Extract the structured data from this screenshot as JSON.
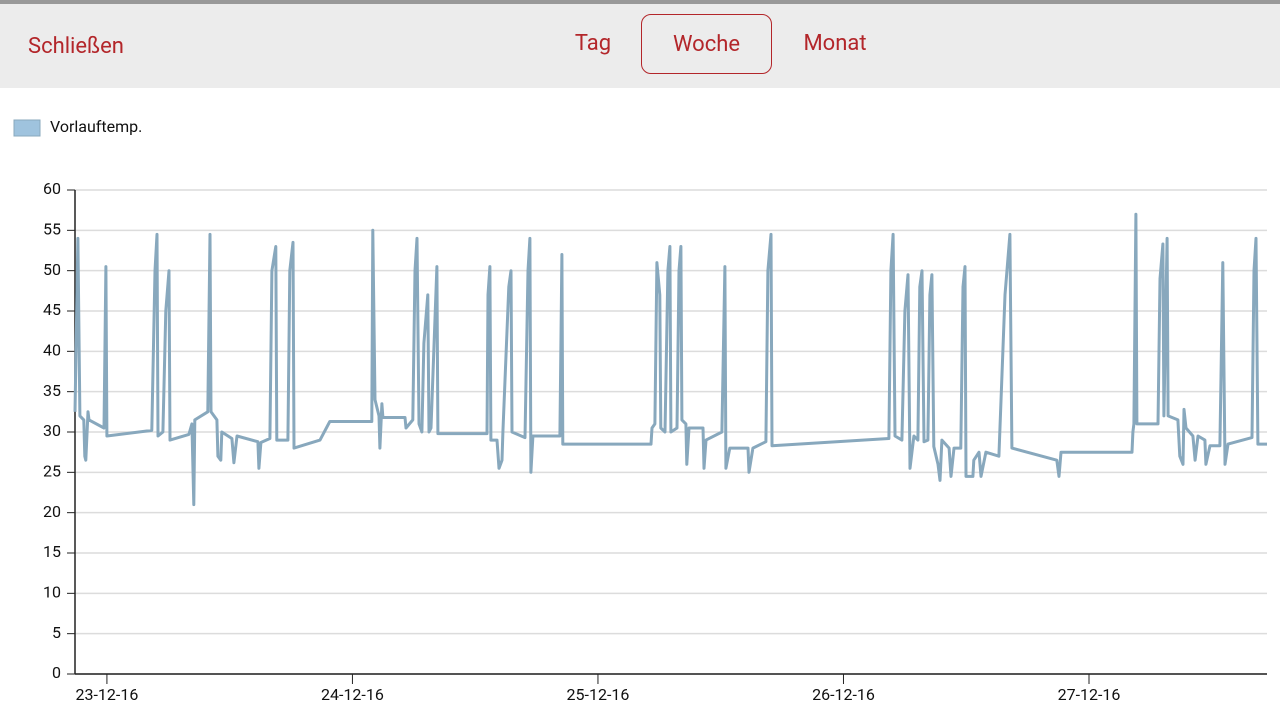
{
  "nav": {
    "close": "Schließen",
    "tabs": [
      "Tag",
      "Woche",
      "Monat"
    ],
    "active_tab": 1
  },
  "chart_data": {
    "type": "line",
    "x": [
      -0.13,
      -0.118,
      -0.11,
      -0.094,
      -0.09,
      -0.086,
      -0.077,
      -0.073,
      -0.012,
      -0.004,
      0,
      0.183,
      0.196,
      0.204,
      0.208,
      0.228,
      0.24,
      0.253,
      0.257,
      0.334,
      0.346,
      0.354,
      0.358,
      0.411,
      0.42,
      0.424,
      0.448,
      0.452,
      0.464,
      0.468,
      0.509,
      0.517,
      0.53,
      0.615,
      0.619,
      0.627,
      0.664,
      0.672,
      0.688,
      0.692,
      0.737,
      0.745,
      0.758,
      0.762,
      0.868,
      0.908,
      1.079,
      1.083,
      1.092,
      1.108,
      1.112,
      1.12,
      1.124,
      1.214,
      1.218,
      1.246,
      1.255,
      1.263,
      1.271,
      1.283,
      1.291,
      1.307,
      1.312,
      1.32,
      1.344,
      1.348,
      1.548,
      1.552,
      1.56,
      1.564,
      1.589,
      1.597,
      1.609,
      1.613,
      1.637,
      1.646,
      1.65,
      1.703,
      1.715,
      1.723,
      1.727,
      1.735,
      1.845,
      1.853,
      1.857,
      2.216,
      2.22,
      2.232,
      2.24,
      2.252,
      2.256,
      2.273,
      2.285,
      2.293,
      2.297,
      2.322,
      2.33,
      2.338,
      2.342,
      2.358,
      2.362,
      2.371,
      2.428,
      2.432,
      2.44,
      2.505,
      2.517,
      2.521,
      2.537,
      2.611,
      2.615,
      2.631,
      2.684,
      2.692,
      2.705,
      2.709,
      3.185,
      3.193,
      3.202,
      3.21,
      3.238,
      3.25,
      3.263,
      3.271,
      3.287,
      3.303,
      3.311,
      3.32,
      3.328,
      3.344,
      3.352,
      3.36,
      3.368,
      3.385,
      3.393,
      3.401,
      3.43,
      3.438,
      3.45,
      3.478,
      3.487,
      3.495,
      3.499,
      3.527,
      3.531,
      3.552,
      3.56,
      3.58,
      3.633,
      3.658,
      3.678,
      3.686,
      3.869,
      3.878,
      3.886,
      4.175,
      4.179,
      4.183,
      4.191,
      4.195,
      4.281,
      4.289,
      4.301,
      4.305,
      4.318,
      4.322,
      4.362,
      4.37,
      4.383,
      4.387,
      4.395,
      4.423,
      4.432,
      4.444,
      4.472,
      4.476,
      4.493,
      4.533,
      4.545,
      4.554,
      4.566,
      4.664,
      4.672,
      4.68,
      4.688,
      4.725
    ],
    "series": [
      {
        "name": "Vorlauftemp.",
        "color": "#88a8bd",
        "values": [
          32.5,
          54,
          32,
          31.5,
          27,
          26.5,
          32.5,
          31.5,
          30.5,
          50.5,
          29.5,
          30.2,
          50,
          54.5,
          29.5,
          30,
          45,
          50,
          29,
          29.7,
          31,
          21,
          31.5,
          32.5,
          54.5,
          32.5,
          31.5,
          27,
          26.5,
          30,
          29.2,
          26.2,
          29.5,
          28.8,
          25.5,
          28.7,
          29.2,
          50,
          53,
          29,
          29,
          50,
          53.5,
          28,
          29,
          31.3,
          31.3,
          55,
          34,
          32,
          28,
          33.5,
          31.8,
          31.8,
          30.5,
          31.5,
          50,
          54,
          31,
          30,
          41,
          47,
          30,
          30.5,
          50.5,
          29.8,
          29.8,
          47,
          50.5,
          29,
          29,
          25.5,
          26.5,
          30,
          48,
          50,
          30,
          29.3,
          50,
          54,
          25,
          29.5,
          29.5,
          52,
          28.5,
          28.5,
          30.5,
          31,
          51,
          47,
          30.5,
          30,
          50,
          53,
          30,
          30.5,
          50,
          53,
          31.5,
          31,
          26,
          30.5,
          30.5,
          25.5,
          29,
          30,
          50.5,
          25.5,
          28,
          28,
          25,
          28,
          28.8,
          50,
          54.5,
          28.3,
          29.2,
          50,
          54.5,
          29.5,
          29,
          45,
          49.5,
          25.5,
          29.5,
          29,
          48,
          50,
          28.8,
          29,
          47,
          49.5,
          28.2,
          26,
          24,
          29,
          28,
          24.5,
          28,
          28,
          48,
          50.5,
          24.5,
          24.5,
          26.5,
          27.5,
          24.5,
          27.5,
          27,
          47,
          54.5,
          28,
          26.5,
          24.5,
          27.5,
          27.5,
          30,
          31,
          57,
          31,
          31,
          49,
          53.3,
          32,
          54,
          32,
          31.5,
          27,
          26,
          32.8,
          30.5,
          29.5,
          26.5,
          29.5,
          29,
          26,
          28.3,
          28.3,
          51,
          26,
          28.5,
          29.3,
          50,
          54,
          28.5,
          28.5
        ]
      }
    ],
    "legend_swatch": "#9fc3de",
    "xlim": [
      -0.13,
      4.725
    ],
    "xticks": [
      {
        "value": 0,
        "label": "23-12-16"
      },
      {
        "value": 1,
        "label": "24-12-16"
      },
      {
        "value": 2,
        "label": "25-12-16"
      },
      {
        "value": 3,
        "label": "26-12-16"
      },
      {
        "value": 4,
        "label": "27-12-16"
      }
    ],
    "ylim": [
      0,
      60
    ],
    "yticks": [
      0,
      5,
      10,
      15,
      20,
      25,
      30,
      35,
      40,
      45,
      50,
      55,
      60
    ],
    "grid": true
  }
}
